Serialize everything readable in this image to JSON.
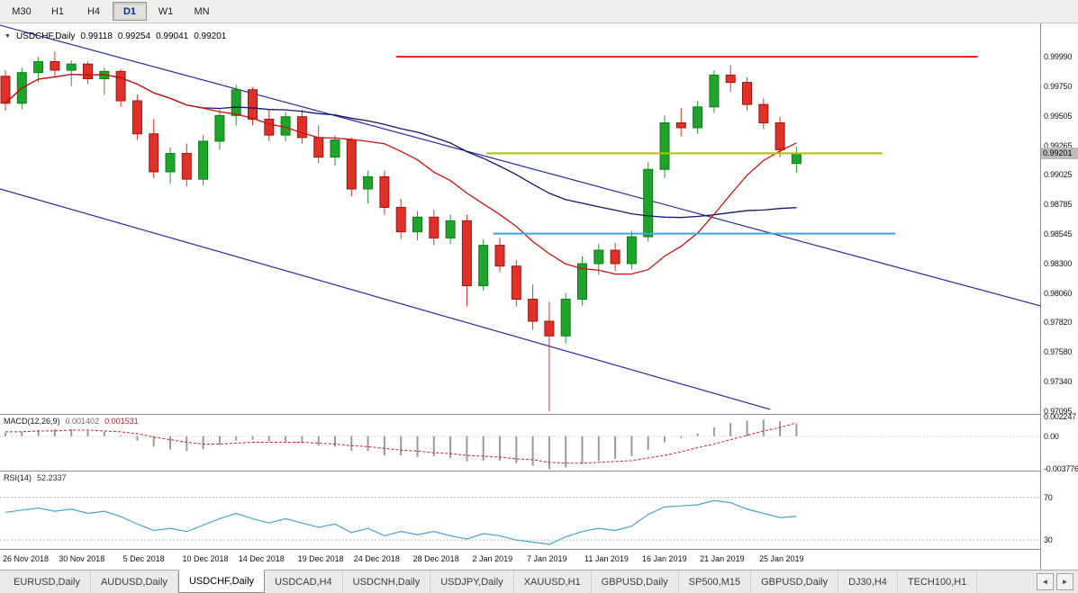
{
  "toolbar": {
    "timeframes": [
      {
        "label": "M30",
        "active": false
      },
      {
        "label": "H1",
        "active": false
      },
      {
        "label": "H4",
        "active": false
      },
      {
        "label": "D1",
        "active": true
      },
      {
        "label": "W1",
        "active": false
      },
      {
        "label": "MN",
        "active": false
      }
    ]
  },
  "icons": {
    "header_marker": "▼",
    "scroll_left": "◄",
    "scroll_right": "►"
  },
  "colors": {
    "bull": "#1fa32a",
    "bear": "#e03128",
    "bull_border": "#0d7d18",
    "bear_border": "#9e1410",
    "ma_fast": "#cc1111",
    "ma_slow": "#16166b",
    "trendline": "#2929a3",
    "hline_red": "#ff2020",
    "hline_yellow": "#b8bc00",
    "hline_blue": "#3da6dd",
    "macd_hist": "#9a9a9a",
    "macd_signal": "#cc2222",
    "rsi_line": "#4aa3cf"
  },
  "chart": {
    "header": {
      "symbol": "USDCHF,Daily",
      "open": "0.99118",
      "high": "0.99254",
      "low": "0.99041",
      "close": "0.99201"
    }
  },
  "chart_data": [
    {
      "type": "candlestick",
      "symbol": "USDCHF",
      "timeframe": "Daily",
      "ohlc": [
        [
          0.9983,
          0.9988,
          0.9955,
          0.9961
        ],
        [
          0.9961,
          0.999,
          0.9956,
          0.9986
        ],
        [
          0.9986,
          0.9999,
          0.9978,
          0.9995
        ],
        [
          0.9995,
          1.0003,
          0.9982,
          0.9988
        ],
        [
          0.9988,
          0.9996,
          0.9975,
          0.9993
        ],
        [
          0.9993,
          0.9995,
          0.9977,
          0.9981
        ],
        [
          0.9981,
          0.999,
          0.9968,
          0.9987
        ],
        [
          0.9987,
          0.9989,
          0.9958,
          0.9963
        ],
        [
          0.9963,
          0.9968,
          0.9931,
          0.9936
        ],
        [
          0.9936,
          0.9948,
          0.99,
          0.9905
        ],
        [
          0.9905,
          0.9925,
          0.9895,
          0.992
        ],
        [
          0.992,
          0.9928,
          0.9893,
          0.9899
        ],
        [
          0.9899,
          0.9935,
          0.9894,
          0.993
        ],
        [
          0.993,
          0.9956,
          0.9923,
          0.9951
        ],
        [
          0.9951,
          0.9976,
          0.9943,
          0.9972
        ],
        [
          0.9972,
          0.9974,
          0.9943,
          0.9948
        ],
        [
          0.9948,
          0.9956,
          0.993,
          0.9935
        ],
        [
          0.9935,
          0.9954,
          0.993,
          0.995
        ],
        [
          0.995,
          0.9956,
          0.9928,
          0.9933
        ],
        [
          0.9933,
          0.9943,
          0.9912,
          0.9917
        ],
        [
          0.9917,
          0.9935,
          0.991,
          0.9931
        ],
        [
          0.9931,
          0.9933,
          0.9885,
          0.9891
        ],
        [
          0.9891,
          0.9906,
          0.9879,
          0.9901
        ],
        [
          0.9901,
          0.9906,
          0.987,
          0.9876
        ],
        [
          0.9876,
          0.9883,
          0.985,
          0.9856
        ],
        [
          0.9856,
          0.9873,
          0.9849,
          0.9868
        ],
        [
          0.9868,
          0.9874,
          0.9845,
          0.9851
        ],
        [
          0.9851,
          0.987,
          0.9846,
          0.9865
        ],
        [
          0.9865,
          0.987,
          0.9795,
          0.9812
        ],
        [
          0.9812,
          0.985,
          0.9808,
          0.9845
        ],
        [
          0.9845,
          0.9851,
          0.9823,
          0.9828
        ],
        [
          0.9828,
          0.9833,
          0.9795,
          0.9801
        ],
        [
          0.9801,
          0.9813,
          0.9776,
          0.9783
        ],
        [
          0.9783,
          0.9799,
          0.97095,
          0.9771
        ],
        [
          0.9771,
          0.9806,
          0.9765,
          0.9801
        ],
        [
          0.9801,
          0.9836,
          0.9796,
          0.983
        ],
        [
          0.983,
          0.9846,
          0.9821,
          0.9841
        ],
        [
          0.9841,
          0.9847,
          0.9824,
          0.983
        ],
        [
          0.983,
          0.9857,
          0.9825,
          0.9852
        ],
        [
          0.9852,
          0.9913,
          0.9848,
          0.9907
        ],
        [
          0.9907,
          0.9951,
          0.99,
          0.9945
        ],
        [
          0.9945,
          0.9957,
          0.9934,
          0.9941
        ],
        [
          0.9941,
          0.9963,
          0.9936,
          0.9958
        ],
        [
          0.9958,
          0.9988,
          0.9953,
          0.9984
        ],
        [
          0.9984,
          0.9992,
          0.997,
          0.9978
        ],
        [
          0.9978,
          0.9982,
          0.9955,
          0.996
        ],
        [
          0.996,
          0.9965,
          0.994,
          0.9945
        ],
        [
          0.9945,
          0.995,
          0.9917,
          0.9923
        ],
        [
          0.99118,
          0.99254,
          0.99041,
          0.99201
        ]
      ],
      "ylim": [
        0.97073,
        1.00262
      ],
      "y_ticks": [
        "0.99990",
        "0.99750",
        "0.99505",
        "0.99265",
        "0.99025",
        "0.98785",
        "0.98545",
        "0.98300",
        "0.98060",
        "0.97820",
        "0.97580",
        "0.97340",
        "0.97095"
      ],
      "current_price": "0.99201",
      "x_ticks": [
        {
          "label": "26 Nov 2018",
          "i": 0
        },
        {
          "label": "30 Nov 2018",
          "i": 3.4
        },
        {
          "label": "5 Dec 2018",
          "i": 7.3
        },
        {
          "label": "10 Dec 2018",
          "i": 10.9
        },
        {
          "label": "14 Dec 2018",
          "i": 14.3
        },
        {
          "label": "19 Dec 2018",
          "i": 17.9
        },
        {
          "label": "24 Dec 2018",
          "i": 21.3
        },
        {
          "label": "28 Dec 2018",
          "i": 24.9
        },
        {
          "label": "2 Jan 2019",
          "i": 28.5
        },
        {
          "label": "7 Jan 2019",
          "i": 31.8
        },
        {
          "label": "11 Jan 2019",
          "i": 35.3
        },
        {
          "label": "16 Jan 2019",
          "i": 38.8
        },
        {
          "label": "21 Jan 2019",
          "i": 42.3
        },
        {
          "label": "25 Jan 2019",
          "i": 45.9
        }
      ],
      "hlines": [
        {
          "price": 0.9999,
          "from": 23.7,
          "to": 59.0,
          "color_key": "hline_red",
          "width": 2
        },
        {
          "price": 0.99201,
          "from": 29.2,
          "to": 53.2,
          "color_key": "hline_yellow",
          "width": 2
        },
        {
          "price": 0.98545,
          "from": 29.6,
          "to": 54.0,
          "color_key": "hline_blue",
          "width": 2
        }
      ],
      "trendlines": [
        {
          "from_i": -0.33,
          "from_p": 1.00247,
          "to_i": 62.8,
          "to_p": 0.97955
        },
        {
          "from_i": -0.33,
          "from_p": 0.9891,
          "to_i": 46.4,
          "to_p": 0.9711
        }
      ],
      "ma_periods": {
        "fast": 12,
        "slow": 26
      }
    },
    {
      "type": "macd_histogram",
      "label": "MACD(12,26,9)",
      "value_main": "0.001402",
      "value_signal": "0.001531",
      "ylim": [
        -0.00395,
        0.00245
      ],
      "y_ticks": [
        "0.002247",
        "0.00",
        "-0.003776"
      ],
      "values": [
        0.0004,
        0.0005,
        0.0007,
        0.0008,
        0.0008,
        0.0006,
        0.0005,
        0.0001,
        -0.0005,
        -0.0012,
        -0.0015,
        -0.0017,
        -0.0015,
        -0.001,
        -0.0005,
        -0.0004,
        -0.0006,
        -0.0006,
        -0.0008,
        -0.0011,
        -0.0012,
        -0.0017,
        -0.0017,
        -0.0022,
        -0.0022,
        -0.0024,
        -0.0023,
        -0.0025,
        -0.0029,
        -0.0028,
        -0.0028,
        -0.0031,
        -0.0034,
        -0.0038,
        -0.0036,
        -0.0032,
        -0.0028,
        -0.0026,
        -0.0023,
        -0.0016,
        -0.0007,
        -0.0002,
        0.0003,
        0.001,
        0.0015,
        0.0018,
        0.0019,
        0.0017,
        0.001402
      ],
      "signal": [
        0.0005,
        0.0005,
        0.0006,
        0.0006,
        0.0007,
        0.0007,
        0.0006,
        0.0005,
        0.0003,
        -0.0001,
        -0.0004,
        -0.0007,
        -0.0009,
        -0.0009,
        -0.0008,
        -0.0007,
        -0.0007,
        -0.0007,
        -0.0007,
        -0.0008,
        -0.0009,
        -0.0011,
        -0.0012,
        -0.0014,
        -0.0016,
        -0.0017,
        -0.0019,
        -0.002,
        -0.0022,
        -0.0023,
        -0.0024,
        -0.0026,
        -0.0027,
        -0.003,
        -0.0031,
        -0.0031,
        -0.003,
        -0.0029,
        -0.0028,
        -0.0025,
        -0.0022,
        -0.0018,
        -0.0013,
        -0.0009,
        -0.0004,
        0.0001,
        0.0006,
        0.001,
        0.001531
      ]
    },
    {
      "type": "rsi_line",
      "label": "RSI(14)",
      "value": "52.2337",
      "ylim": [
        21.7,
        94.2
      ],
      "levels": [
        70,
        30
      ],
      "y_ticks": [
        "70",
        "30"
      ],
      "values": [
        56,
        58,
        60,
        57,
        59,
        55,
        57,
        52,
        45,
        39,
        41,
        38,
        44,
        50,
        55,
        50,
        46,
        50,
        46,
        42,
        45,
        37,
        41,
        34,
        38,
        35,
        38,
        34,
        31,
        36,
        34,
        30,
        28,
        26,
        33,
        38,
        41,
        39,
        43,
        54,
        61,
        62,
        63,
        67,
        65,
        59,
        55,
        51,
        52.2337
      ]
    }
  ],
  "tabs": {
    "items": [
      {
        "label": "EURUSD,Daily",
        "active": false
      },
      {
        "label": "AUDUSD,Daily",
        "active": false
      },
      {
        "label": "USDCHF,Daily",
        "active": true
      },
      {
        "label": "USDCAD,H4",
        "active": false
      },
      {
        "label": "USDCNH,Daily",
        "active": false
      },
      {
        "label": "USDJPY,Daily",
        "active": false
      },
      {
        "label": "XAUUSD,H1",
        "active": false
      },
      {
        "label": "GBPUSD,Daily",
        "active": false
      },
      {
        "label": "SP500,M15",
        "active": false
      },
      {
        "label": "GBPUSD,Daily",
        "active": false
      },
      {
        "label": "DJ30,H4",
        "active": false
      },
      {
        "label": "TECH100,H1",
        "active": false
      }
    ]
  }
}
